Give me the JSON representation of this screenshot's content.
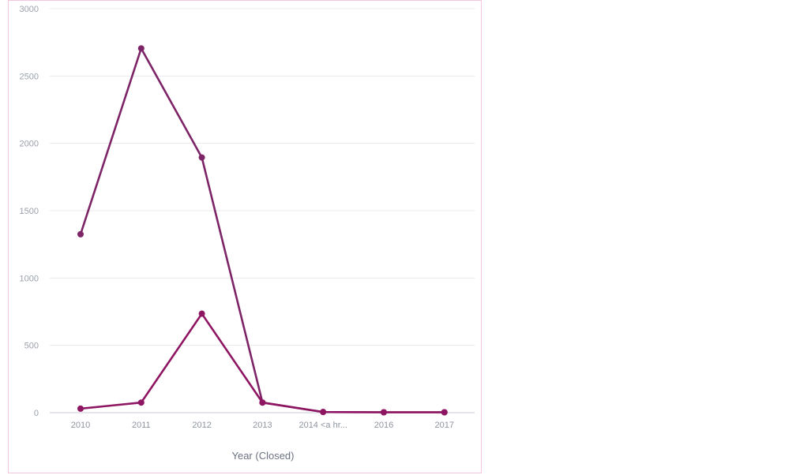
{
  "chart_data": {
    "type": "line",
    "categories": [
      "2010",
      "2011",
      "2012",
      "2013",
      "2014 <a hr...",
      "2016",
      "2017"
    ],
    "xlabel": "Year (Closed)",
    "ylabel": "",
    "ylim": [
      0,
      3000
    ],
    "yticks": [
      0,
      500,
      1000,
      1500,
      2000,
      2500,
      3000
    ],
    "grid": true,
    "series": [
      {
        "color": "#7d2467",
        "values": [
          1325,
          2705,
          1895,
          75,
          5,
          3,
          3
        ]
      },
      {
        "color": "#8e1561",
        "values": [
          30,
          75,
          735,
          75,
          5,
          3,
          3
        ]
      }
    ]
  }
}
